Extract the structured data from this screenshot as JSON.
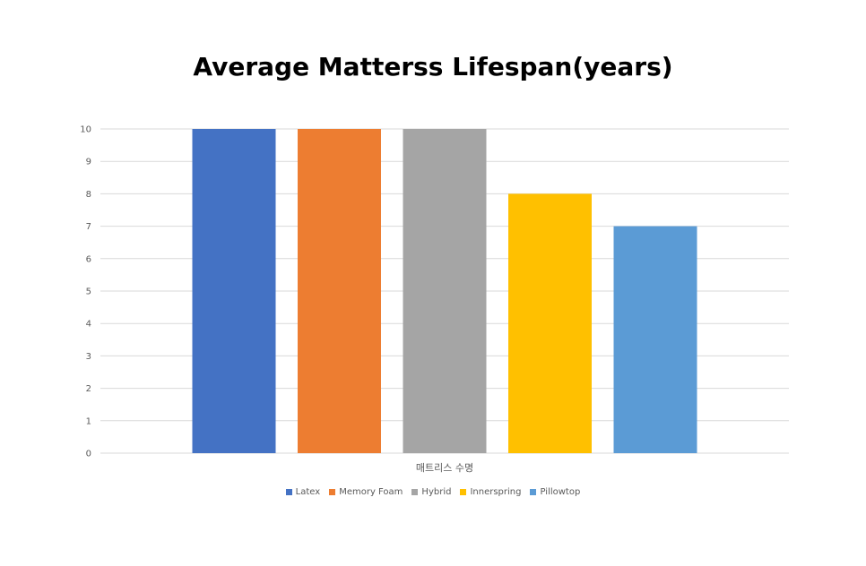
{
  "chart_data": {
    "type": "bar",
    "title": "Average Matterss Lifespan(years)",
    "categories": [
      "매트리스 수명"
    ],
    "series": [
      {
        "name": "Latex",
        "values": [
          10
        ],
        "color": "#4472C4"
      },
      {
        "name": "Memory Foam",
        "values": [
          10
        ],
        "color": "#ED7D31"
      },
      {
        "name": "Hybrid",
        "values": [
          10
        ],
        "color": "#A5A5A5"
      },
      {
        "name": "Innerspring",
        "values": [
          8
        ],
        "color": "#FFC000"
      },
      {
        "name": "Pillowtop",
        "values": [
          7
        ],
        "color": "#5B9BD5"
      }
    ],
    "ylim": [
      0,
      10
    ],
    "yticks": [
      0,
      1,
      2,
      3,
      4,
      5,
      6,
      7,
      8,
      9,
      10
    ],
    "grid": true,
    "legend_position": "bottom"
  }
}
